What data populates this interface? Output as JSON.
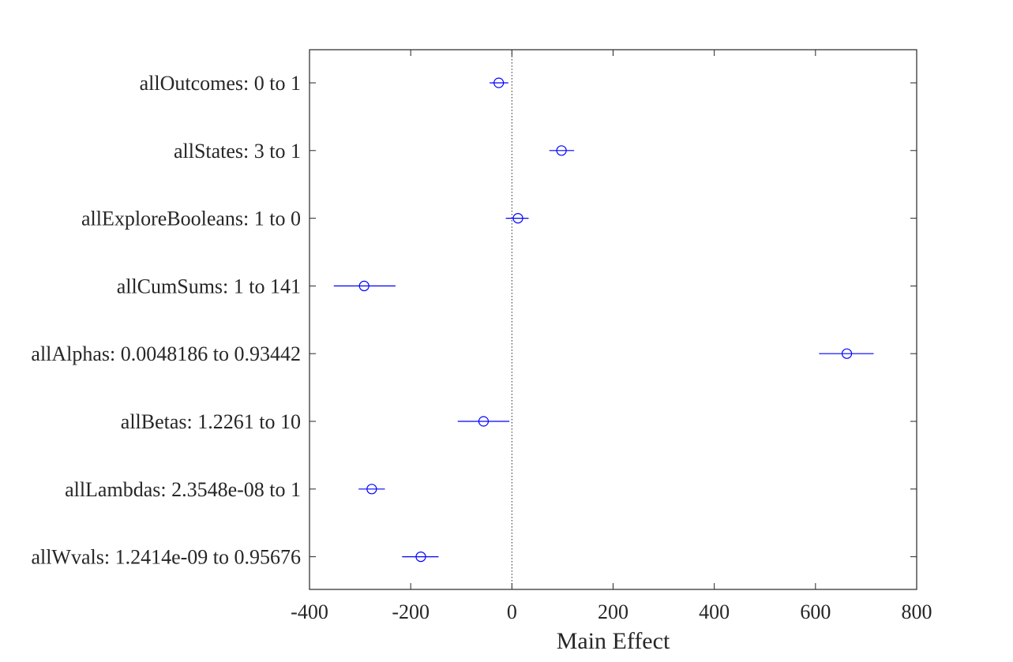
{
  "chart_data": {
    "type": "scatter",
    "title": "",
    "xlabel": "Main Effect",
    "ylabel": "",
    "xlim": [
      -400,
      800
    ],
    "xticks": [
      -400,
      -200,
      0,
      200,
      400,
      600,
      800
    ],
    "xtick_labels": [
      "-400",
      "-200",
      "0",
      "200",
      "400",
      "600",
      "800"
    ],
    "reference_line_x": 0,
    "grid": false,
    "legend": "none",
    "marker_color": "#0000ff",
    "reference_line_color": "#262626",
    "categories": [
      "allOutcomes: 0 to 1",
      "allStates: 3 to 1",
      "allExploreBooleans: 1 to 0",
      "allCumSums: 1 to 141",
      "allAlphas: 0.0048186 to 0.93442",
      "allBetas: 1.2261 to 10",
      "allLambdas: 2.3548e-08 to 1",
      "allWvals: 1.2414e-09 to 0.95676"
    ],
    "values": [
      -26,
      98,
      12,
      -292,
      662,
      -56,
      -277,
      -180
    ],
    "error_low": [
      -44,
      74,
      -12,
      -352,
      607,
      -107,
      -303,
      -217
    ],
    "error_high": [
      -7,
      123,
      33,
      -230,
      715,
      -5,
      -251,
      -145
    ]
  }
}
